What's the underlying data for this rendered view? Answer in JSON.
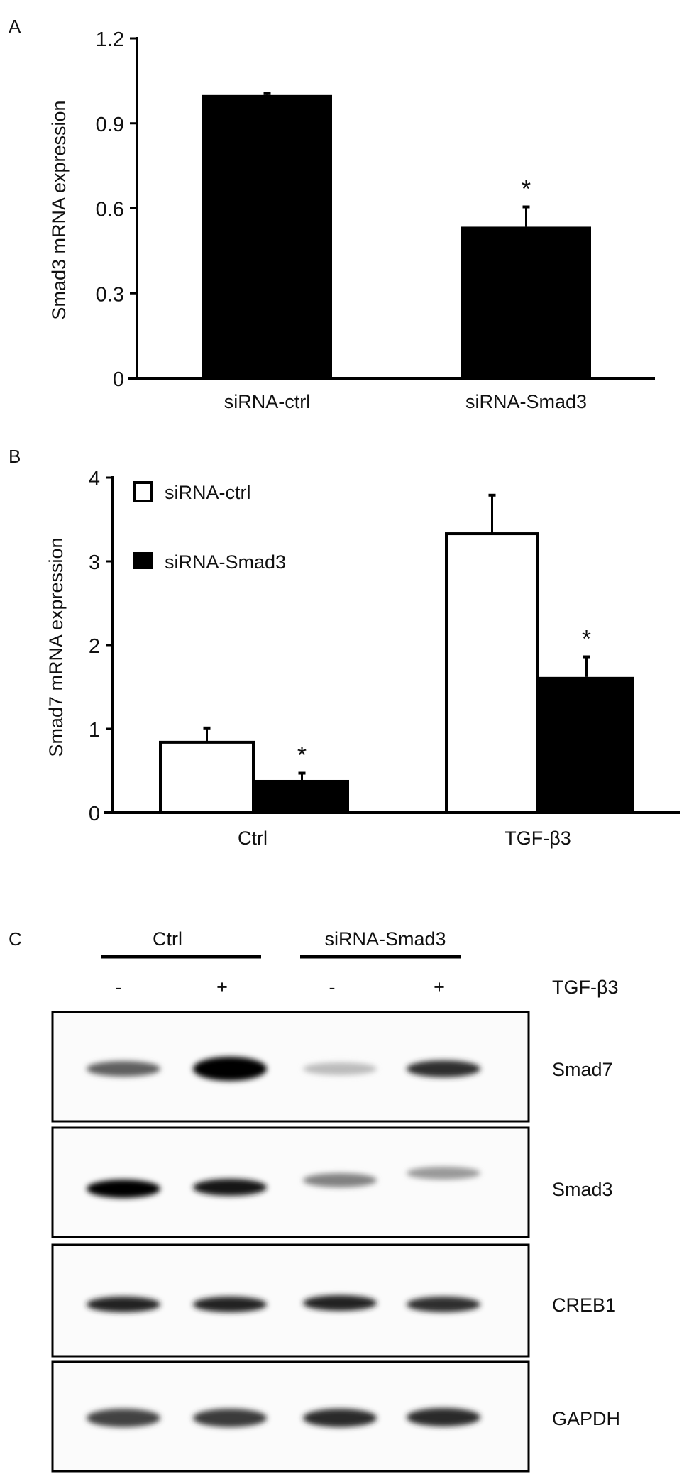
{
  "chart_data": [
    {
      "panel_label": "A",
      "type": "bar",
      "ylabel": "Smad3 mRNA expression",
      "ylim": [
        0,
        1.2
      ],
      "yticks": [
        "0",
        "0.3",
        "0.6",
        "0.9",
        "1.2"
      ],
      "categories": [
        "siRNA-ctrl",
        "siRNA-Smad3"
      ],
      "values": [
        1.0,
        0.535
      ],
      "errors": [
        0.005,
        0.07
      ],
      "annotations": [
        "",
        "*"
      ],
      "bar_colors": [
        "#000000",
        "#000000"
      ],
      "grid": false
    },
    {
      "panel_label": "B",
      "type": "bar",
      "ylabel": "Smad7 mRNA expression",
      "ylim": [
        0,
        4
      ],
      "yticks": [
        "0",
        "1",
        "2",
        "3",
        "4"
      ],
      "categories": [
        "Ctrl",
        "TGF-β3"
      ],
      "series": [
        {
          "name": "siRNA-ctrl",
          "values": [
            0.84,
            3.33
          ],
          "errors": [
            0.17,
            0.46
          ],
          "annotations": [
            "",
            ""
          ],
          "color": "#ffffff"
        },
        {
          "name": "siRNA-Smad3",
          "values": [
            0.39,
            1.62
          ],
          "errors": [
            0.08,
            0.24
          ],
          "annotations": [
            "*",
            "*"
          ],
          "color": "#000000"
        }
      ],
      "legend_placement": "top-left",
      "grid": false
    }
  ],
  "blot": {
    "panel_label": "C",
    "groups": [
      "Ctrl",
      "siRNA-Smad3"
    ],
    "treatment_label": "TGF-β3",
    "lanes": [
      "-",
      "+",
      "-",
      "+"
    ],
    "rows": [
      {
        "label": "Smad7",
        "intensity": [
          0.6,
          1.0,
          0.2,
          0.8
        ]
      },
      {
        "label": "Smad3",
        "intensity": [
          1.0,
          0.92,
          0.45,
          0.35
        ]
      },
      {
        "label": "CREB1",
        "intensity": [
          0.85,
          0.85,
          0.85,
          0.8
        ]
      },
      {
        "label": "GAPDH",
        "intensity": [
          0.72,
          0.75,
          0.82,
          0.82
        ]
      }
    ]
  }
}
